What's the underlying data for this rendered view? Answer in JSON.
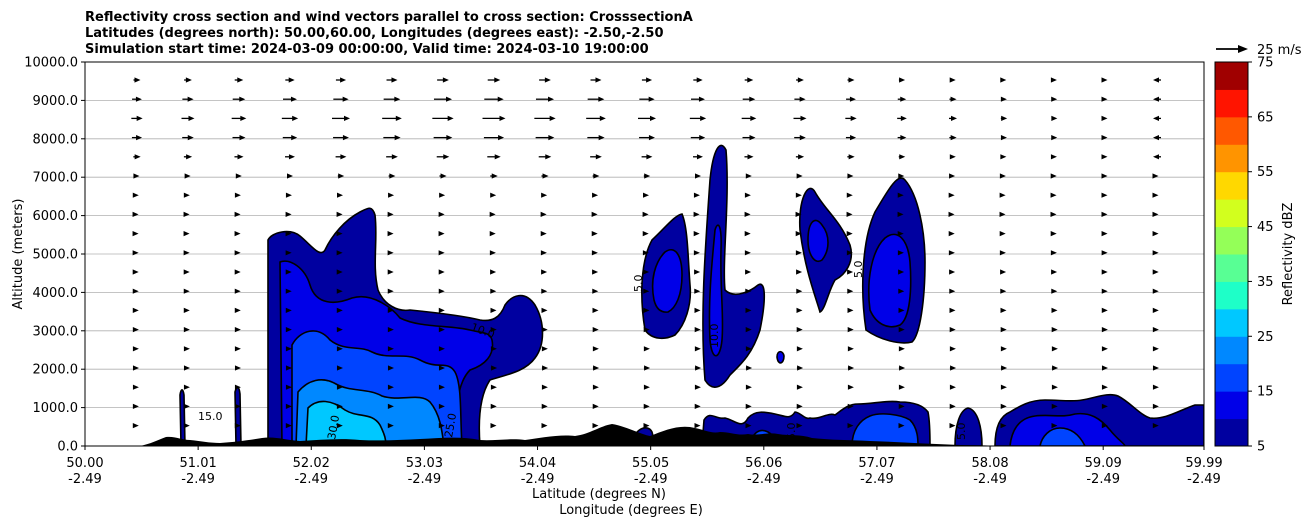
{
  "chart_data": {
    "type": "heatmap",
    "title_lines": [
      "Reflectivity cross section and wind vectors parallel to cross section: CrosssectionA",
      "Latitudes (degrees north): 50.00,60.00, Longitudes (degrees east): -2.50,-2.50",
      "Simulation start time: 2024-03-09 00:00:00, Valid time: 2024-03-10 19:00:00"
    ],
    "ylabel": "Altitude (meters)",
    "xlabel_lines": [
      "Latitude (degrees N)",
      "Longitude (degrees E)"
    ],
    "colorbar_label": "Reflectivity dBZ",
    "quiver_key": "25 m/s",
    "ylim": [
      0,
      10000
    ],
    "xlim": [
      50.0,
      59.99
    ],
    "y_ticks": [
      "0.0",
      "1000.0",
      "2000.0",
      "3000.0",
      "4000.0",
      "5000.0",
      "6000.0",
      "7000.0",
      "8000.0",
      "9000.0",
      "10000.0"
    ],
    "y_tick_values": [
      0,
      1000,
      2000,
      3000,
      4000,
      5000,
      6000,
      7000,
      8000,
      9000,
      10000
    ],
    "x_ticks": [
      {
        "lat": "50.00",
        "lon": "-2.49",
        "value": 50.0
      },
      {
        "lat": "51.01",
        "lon": "-2.49",
        "value": 51.01
      },
      {
        "lat": "52.02",
        "lon": "-2.49",
        "value": 52.02
      },
      {
        "lat": "53.03",
        "lon": "-2.49",
        "value": 53.03
      },
      {
        "lat": "54.04",
        "lon": "-2.49",
        "value": 54.04
      },
      {
        "lat": "55.05",
        "lon": "-2.49",
        "value": 55.05
      },
      {
        "lat": "56.06",
        "lon": "-2.49",
        "value": 56.06
      },
      {
        "lat": "57.07",
        "lon": "-2.49",
        "value": 57.07
      },
      {
        "lat": "58.08",
        "lon": "-2.49",
        "value": 58.08
      },
      {
        "lat": "59.09",
        "lon": "-2.49",
        "value": 59.09
      },
      {
        "lat": "59.99",
        "lon": "-2.49",
        "value": 59.99
      }
    ],
    "grid": "horizontal",
    "colorbar": {
      "ticks": [
        "5",
        "15",
        "25",
        "35",
        "45",
        "55",
        "65",
        "75"
      ],
      "tick_values": [
        5,
        15,
        25,
        35,
        45,
        55,
        65,
        75
      ],
      "levels": [
        5,
        10,
        15,
        20,
        25,
        30,
        35,
        40,
        45,
        50,
        55,
        60,
        65,
        70,
        75
      ],
      "colors": [
        "#0000a0",
        "#0000e8",
        "#0044ff",
        "#0088ff",
        "#00c8ff",
        "#1effc8",
        "#58ff94",
        "#94ff58",
        "#d2ff1e",
        "#ffd800",
        "#ff9400",
        "#ff5800",
        "#ff1400",
        "#a00000"
      ]
    },
    "contour_labels": [
      "5.0",
      "10.0",
      "15.0",
      "25.0",
      "30.0",
      "10.0",
      "5.0",
      "5.0",
      "5.0"
    ]
  }
}
